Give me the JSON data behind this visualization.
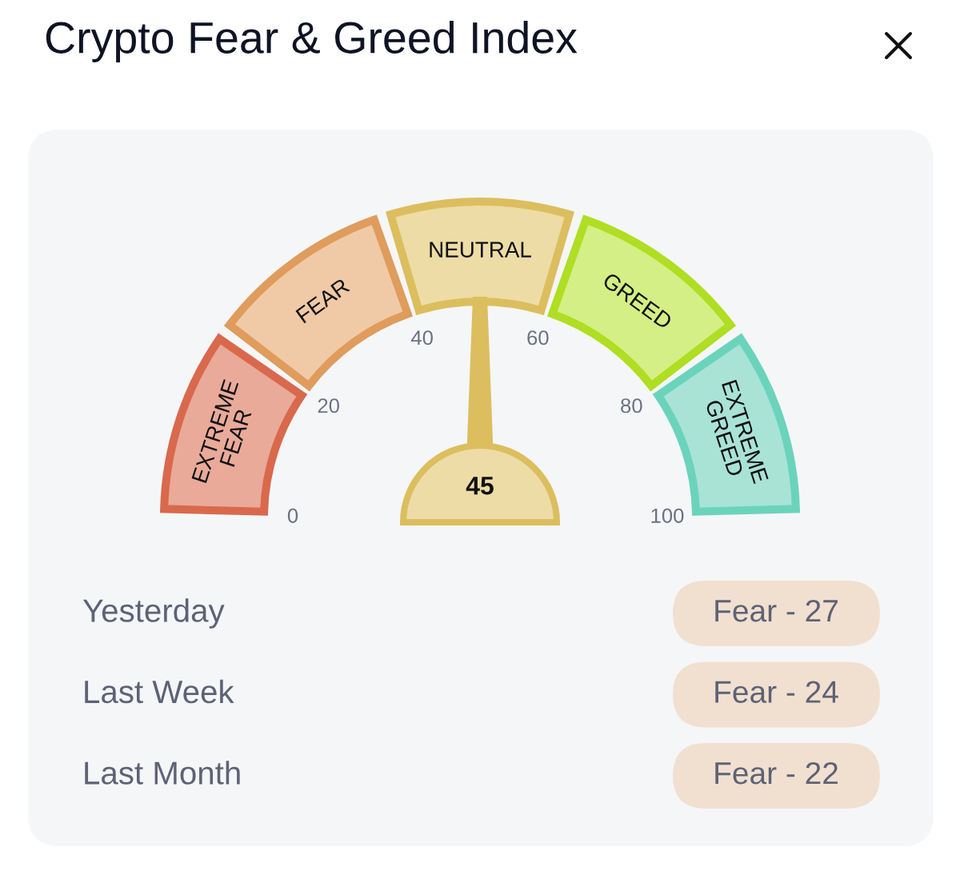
{
  "chart_data": [
    {
      "type": "donut",
      "title": "Crypto Fear & Greed Index",
      "categories": [
        "EXTREME\nFEAR",
        "FEAR",
        "NEUTRAL",
        "GREED",
        "EXTREME\nGREED"
      ],
      "values": [
        20,
        20,
        20,
        20,
        20
      ],
      "colors": [
        "#e9aa9a",
        "#f0caa6",
        "#eddca6",
        "#d4ef85",
        "#a8e3d6"
      ],
      "needle": "NEUTRAL",
      "annotations": [
        "0",
        "20",
        "40",
        "60",
        "80",
        "100",
        "45"
      ]
    },
    {
      "type": "other",
      "annotations": [
        "Yesterday",
        "Fear - 27",
        "Last Week",
        "Fear - 24",
        "Last Month",
        "Fear - 22"
      ]
    }
  ]
}
